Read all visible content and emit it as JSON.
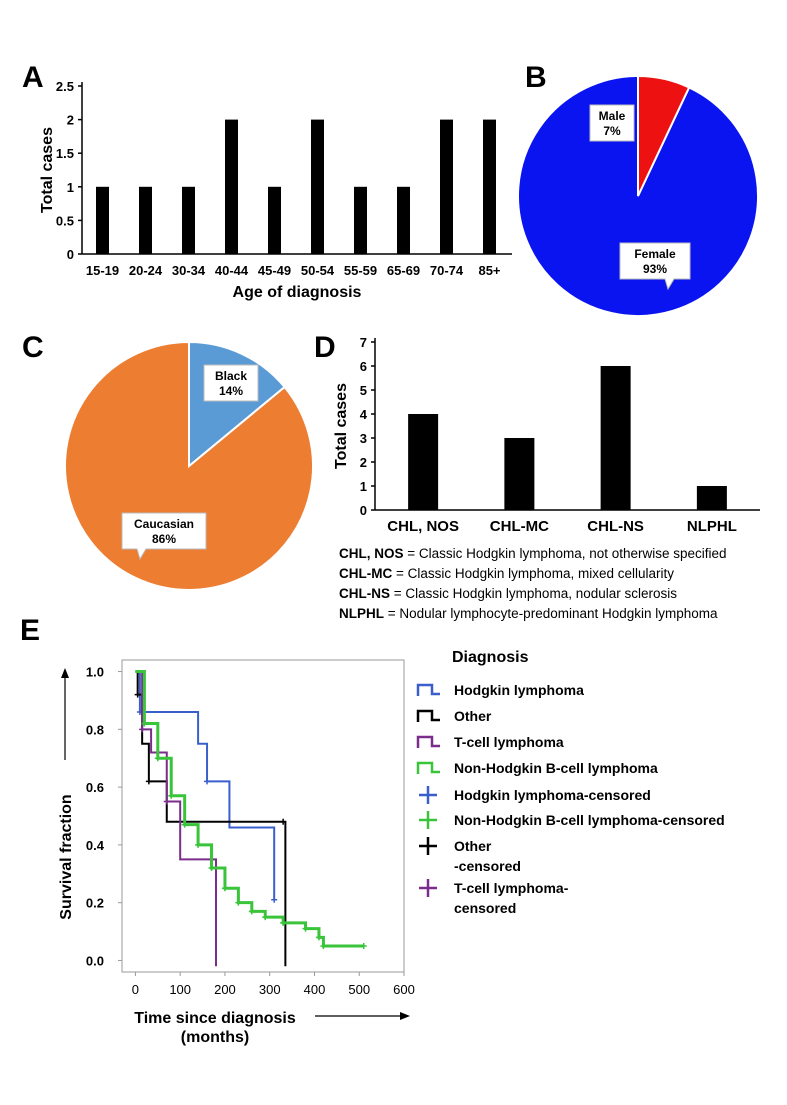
{
  "panels": {
    "a": {
      "letter": "A"
    },
    "b": {
      "letter": "B"
    },
    "c": {
      "letter": "C"
    },
    "d": {
      "letter": "D"
    },
    "e": {
      "letter": "E"
    }
  },
  "abbreviations": [
    {
      "abbr": "CHL, NOS",
      "text": " = Classic Hodgkin lymphoma, not otherwise specified"
    },
    {
      "abbr": "CHL-MC",
      "text": " = Classic Hodgkin lymphoma, mixed cellularity"
    },
    {
      "abbr": "CHL-NS",
      "text": " = Classic Hodgkin lymphoma, nodular sclerosis"
    },
    {
      "abbr": "NLPHL",
      "text": " = Nodular lymphocyte-predominant Hodgkin lymphoma"
    }
  ],
  "chart_data": [
    {
      "id": "A",
      "type": "bar",
      "title": "",
      "xlabel": "Age of diagnosis",
      "ylabel": "Total cases",
      "categories": [
        "15-19",
        "20-24",
        "30-34",
        "40-44",
        "45-49",
        "50-54",
        "55-59",
        "65-69",
        "70-74",
        "85+"
      ],
      "values": [
        1,
        1,
        1,
        2,
        1,
        2,
        1,
        1,
        2,
        2
      ],
      "ylim": [
        0,
        2.5
      ],
      "yticks": [
        "0",
        "0.5",
        "1",
        "1.5",
        "2",
        "2.5"
      ],
      "colors": {
        "bar": "#000000"
      }
    },
    {
      "id": "B",
      "type": "pie",
      "labels": [
        "Female",
        "Male"
      ],
      "values": [
        93,
        7
      ],
      "value_labels": [
        "93%",
        "7%"
      ],
      "colors": [
        "#0a14f0",
        "#ee1111"
      ]
    },
    {
      "id": "C",
      "type": "pie",
      "labels": [
        "Caucasian",
        "Black"
      ],
      "values": [
        86,
        14
      ],
      "value_labels": [
        "86%",
        "14%"
      ],
      "colors": [
        "#ed7d31",
        "#5b9bd5"
      ]
    },
    {
      "id": "D",
      "type": "bar",
      "xlabel": "",
      "ylabel": "Total cases",
      "categories": [
        "CHL, NOS",
        "CHL-MC",
        "CHL-NS",
        "NLPHL"
      ],
      "values": [
        4,
        3,
        6,
        1
      ],
      "ylim": [
        0,
        7
      ],
      "yticks": [
        "0",
        "1",
        "2",
        "3",
        "4",
        "5",
        "6",
        "7"
      ],
      "colors": {
        "bar": "#000000"
      }
    },
    {
      "id": "E",
      "type": "line",
      "xlabel_line1": "Time since diagnosis",
      "xlabel_line2": "(months)",
      "ylabel": "Survival fraction",
      "xlim": [
        -30,
        600
      ],
      "ylim": [
        -0.04,
        1.04
      ],
      "xticks": [
        "0",
        "100",
        "200",
        "300",
        "400",
        "500",
        "600"
      ],
      "yticks": [
        "0.0",
        "0.2",
        "0.4",
        "0.6",
        "0.8",
        "1.0"
      ],
      "legend_title": "Diagnosis",
      "legend": [
        {
          "label": "Hodgkin lymphoma",
          "color": "#3a5fcd",
          "marker": "step"
        },
        {
          "label": "Other",
          "color": "#000000",
          "marker": "step"
        },
        {
          "label": "T-cell lymphoma",
          "color": "#7b2d8b",
          "marker": "step"
        },
        {
          "label": "Non-Hodgkin B-cell lymphoma",
          "color": "#39c43a",
          "marker": "step"
        },
        {
          "label": "Hodgkin lymphoma-censored",
          "color": "#3a5fcd",
          "marker": "plus"
        },
        {
          "label": "Non-Hodgkin B-cell lymphoma-censored",
          "color": "#39c43a",
          "marker": "plus"
        },
        {
          "label": "Other",
          "label2": "-censored",
          "color": "#000000",
          "marker": "plus"
        },
        {
          "label": "T-cell lymphoma-",
          "label2": "censored",
          "color": "#7b2d8b",
          "marker": "plus"
        }
      ],
      "series": [
        {
          "name": "Hodgkin lymphoma",
          "color": "#3a5fcd",
          "x": [
            0,
            10,
            140,
            160,
            210,
            310
          ],
          "y": [
            1.0,
            0.86,
            0.75,
            0.62,
            0.46,
            0.21
          ]
        },
        {
          "name": "Other",
          "color": "#000000",
          "x": [
            0,
            5,
            15,
            30,
            70,
            330,
            335
          ],
          "y": [
            1.0,
            0.92,
            0.75,
            0.62,
            0.48,
            0.48,
            -0.02
          ]
        },
        {
          "name": "T-cell lymphoma",
          "color": "#7b2d8b",
          "x": [
            0,
            15,
            35,
            70,
            100,
            170,
            180
          ],
          "y": [
            1.0,
            0.8,
            0.72,
            0.55,
            0.35,
            0.35,
            -0.02
          ]
        },
        {
          "name": "Non-Hodgkin B-cell lymphoma",
          "color": "#39c43a",
          "x": [
            0,
            20,
            50,
            80,
            110,
            140,
            170,
            200,
            230,
            260,
            290,
            330,
            380,
            410,
            420,
            510
          ],
          "y": [
            1.0,
            0.82,
            0.7,
            0.57,
            0.47,
            0.4,
            0.32,
            0.25,
            0.2,
            0.17,
            0.15,
            0.13,
            0.11,
            0.08,
            0.05,
            0.05
          ]
        }
      ]
    }
  ]
}
